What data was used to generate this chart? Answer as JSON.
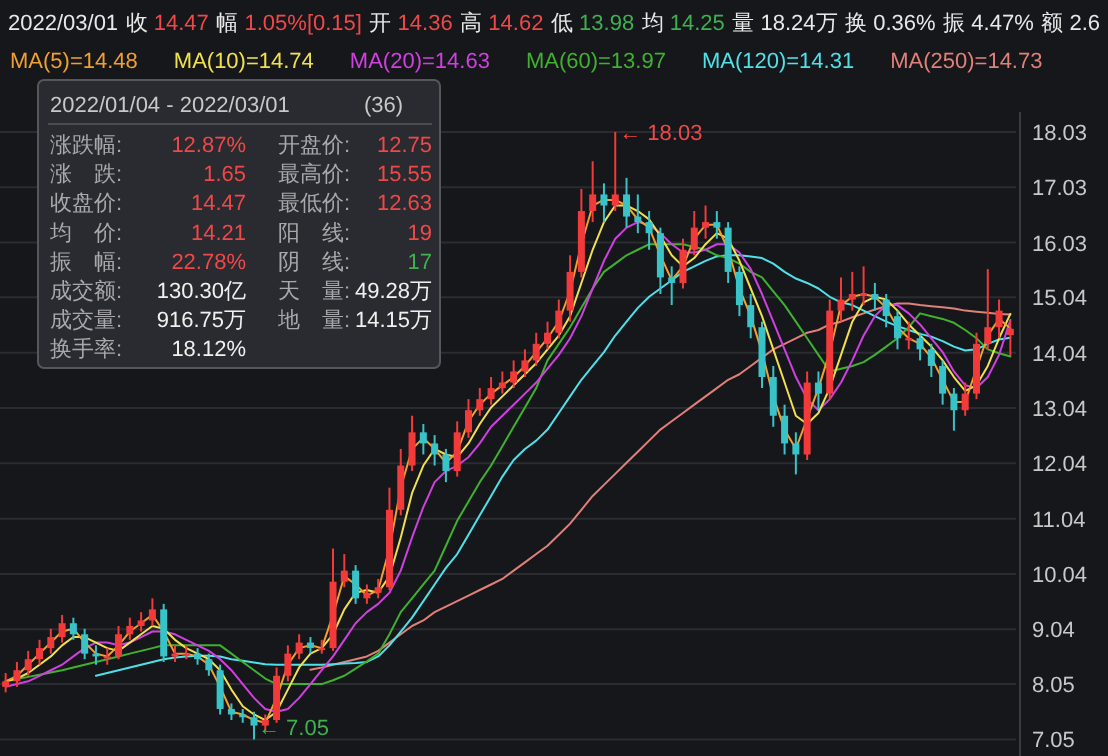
{
  "chart_data": {
    "type": "candlestick",
    "categories": [
      null,
      null,
      null,
      null,
      null,
      null,
      null,
      null,
      null,
      null,
      null,
      null,
      null,
      null,
      null,
      null,
      null,
      null,
      null,
      null,
      null,
      null,
      null,
      null,
      null,
      null,
      null,
      null,
      null,
      null,
      null,
      null,
      null,
      null,
      null,
      null,
      null,
      null,
      null,
      null,
      null,
      null,
      null,
      null,
      null,
      null,
      null,
      null,
      null,
      null,
      null,
      null,
      null,
      null,
      null,
      null,
      null,
      null,
      null,
      null,
      null,
      null,
      null,
      null,
      null,
      null,
      null,
      null,
      null,
      null,
      null,
      null,
      null,
      null,
      null,
      null,
      null,
      null,
      null,
      null,
      null,
      null,
      null,
      null,
      null,
      null,
      null,
      null,
      null,
      null
    ],
    "ohlc": [
      [
        8.0,
        8.25,
        7.9,
        8.1
      ],
      [
        8.1,
        8.45,
        8.0,
        8.3
      ],
      [
        8.3,
        8.65,
        8.2,
        8.5
      ],
      [
        8.5,
        8.85,
        8.4,
        8.7
      ],
      [
        8.7,
        9.05,
        8.6,
        8.9
      ],
      [
        8.9,
        9.3,
        8.8,
        9.15
      ],
      [
        9.15,
        9.25,
        8.85,
        8.95
      ],
      [
        8.95,
        9.05,
        8.5,
        8.6
      ],
      [
        8.6,
        8.75,
        8.4,
        8.55
      ],
      [
        8.55,
        8.7,
        8.4,
        8.55
      ],
      [
        8.55,
        9.1,
        8.5,
        8.95
      ],
      [
        8.95,
        9.25,
        8.85,
        9.1
      ],
      [
        9.1,
        9.35,
        9.0,
        9.2
      ],
      [
        9.2,
        9.6,
        9.1,
        9.4
      ],
      [
        9.4,
        9.5,
        8.45,
        8.55
      ],
      [
        8.55,
        8.75,
        8.45,
        8.6
      ],
      [
        8.6,
        8.75,
        8.5,
        8.6
      ],
      [
        8.6,
        8.7,
        8.4,
        8.5
      ],
      [
        8.5,
        8.6,
        8.2,
        8.3
      ],
      [
        8.3,
        8.4,
        7.5,
        7.6
      ],
      [
        7.6,
        7.7,
        7.4,
        7.5
      ],
      [
        7.5,
        7.6,
        7.35,
        7.45
      ],
      [
        7.45,
        7.55,
        7.05,
        7.3
      ],
      [
        7.3,
        7.5,
        7.2,
        7.4
      ],
      [
        7.4,
        8.35,
        7.35,
        8.2
      ],
      [
        8.2,
        8.75,
        8.1,
        8.6
      ],
      [
        8.6,
        8.95,
        8.5,
        8.8
      ],
      [
        8.8,
        8.9,
        8.6,
        8.7
      ],
      [
        8.7,
        8.85,
        8.6,
        8.7
      ],
      [
        8.7,
        10.5,
        8.65,
        9.9
      ],
      [
        9.9,
        10.4,
        9.8,
        10.1
      ],
      [
        10.1,
        10.2,
        9.5,
        9.6
      ],
      [
        9.6,
        9.85,
        9.5,
        9.7
      ],
      [
        9.7,
        9.95,
        9.6,
        9.8
      ],
      [
        9.8,
        11.6,
        9.75,
        11.2
      ],
      [
        11.2,
        12.3,
        11.1,
        12.0
      ],
      [
        12.0,
        12.9,
        11.9,
        12.6
      ],
      [
        12.6,
        12.75,
        12.2,
        12.4
      ],
      [
        12.4,
        12.55,
        12.0,
        12.2
      ],
      [
        12.2,
        12.3,
        11.7,
        11.9
      ],
      [
        11.9,
        12.8,
        11.8,
        12.6
      ],
      [
        12.6,
        13.2,
        12.5,
        13.0
      ],
      [
        13.0,
        13.4,
        12.9,
        13.2
      ],
      [
        13.2,
        13.6,
        13.1,
        13.4
      ],
      [
        13.4,
        13.7,
        13.3,
        13.5
      ],
      [
        13.5,
        13.9,
        13.4,
        13.7
      ],
      [
        13.7,
        14.1,
        13.6,
        13.9
      ],
      [
        13.9,
        14.4,
        13.8,
        14.2
      ],
      [
        14.2,
        14.6,
        14.1,
        14.4
      ],
      [
        14.4,
        15.0,
        14.3,
        14.8
      ],
      [
        14.8,
        15.8,
        14.6,
        15.5
      ],
      [
        15.5,
        17.0,
        15.4,
        16.6
      ],
      [
        16.6,
        17.5,
        16.4,
        16.9
      ],
      [
        16.9,
        17.1,
        16.4,
        16.7
      ],
      [
        16.7,
        18.03,
        16.6,
        16.9
      ],
      [
        16.9,
        17.2,
        16.3,
        16.5
      ],
      [
        16.5,
        16.9,
        16.2,
        16.4
      ],
      [
        16.4,
        16.6,
        15.9,
        16.2
      ],
      [
        16.2,
        16.3,
        15.1,
        15.4
      ],
      [
        15.4,
        15.6,
        14.9,
        15.3
      ],
      [
        15.3,
        16.1,
        15.2,
        15.9
      ],
      [
        15.9,
        16.6,
        15.8,
        16.3
      ],
      [
        16.3,
        16.7,
        16.1,
        16.4
      ],
      [
        16.4,
        16.6,
        16.1,
        16.3
      ],
      [
        16.3,
        16.4,
        15.3,
        15.5
      ],
      [
        15.5,
        15.6,
        14.7,
        14.9
      ],
      [
        14.9,
        15.1,
        14.3,
        14.5
      ],
      [
        14.5,
        14.6,
        13.4,
        13.6
      ],
      [
        13.6,
        13.8,
        12.7,
        12.9
      ],
      [
        12.9,
        13.1,
        12.2,
        12.4
      ],
      [
        12.4,
        12.6,
        11.84,
        12.2
      ],
      [
        12.2,
        13.7,
        12.1,
        13.5
      ],
      [
        13.5,
        13.7,
        13.0,
        13.3
      ],
      [
        13.3,
        15.0,
        13.2,
        14.8
      ],
      [
        14.8,
        15.4,
        14.6,
        15.0
      ],
      [
        15.0,
        15.5,
        14.8,
        15.1
      ],
      [
        15.1,
        15.6,
        14.9,
        15.1
      ],
      [
        15.1,
        15.3,
        14.8,
        15.0
      ],
      [
        15.0,
        15.1,
        14.5,
        14.7
      ],
      [
        14.7,
        14.8,
        14.1,
        14.3
      ],
      [
        14.3,
        14.6,
        14.1,
        14.3
      ],
      [
        14.3,
        14.4,
        13.9,
        14.1
      ],
      [
        14.1,
        14.2,
        13.6,
        13.8
      ],
      [
        13.8,
        13.9,
        13.1,
        13.3
      ],
      [
        13.3,
        13.4,
        12.63,
        13.0
      ],
      [
        13.0,
        13.5,
        12.9,
        13.3
      ],
      [
        13.3,
        14.4,
        13.2,
        14.2
      ],
      [
        14.2,
        15.55,
        14.1,
        14.5
      ],
      [
        14.5,
        15.0,
        14.3,
        14.8
      ],
      [
        14.36,
        14.62,
        13.98,
        14.47
      ]
    ],
    "colors": [
      "#f23a3a",
      "#f23a3a",
      "#f23a3a",
      "#f23a3a",
      "#f23a3a",
      "#f23a3a",
      "#38c3c8",
      "#38c3c8",
      "#38c3c8",
      "#f23a3a",
      "#f23a3a",
      "#f23a3a",
      "#f23a3a",
      "#f23a3a",
      "#38c3c8",
      "#f23a3a",
      "#f23a3a",
      "#38c3c8",
      "#38c3c8",
      "#38c3c8",
      "#38c3c8",
      "#38c3c8",
      "#38c3c8",
      "#f23a3a",
      "#f23a3a",
      "#f23a3a",
      "#f23a3a",
      "#38c3c8",
      "#f23a3a",
      "#f23a3a",
      "#f23a3a",
      "#38c3c8",
      "#f23a3a",
      "#f23a3a",
      "#f23a3a",
      "#f23a3a",
      "#f23a3a",
      "#38c3c8",
      "#38c3c8",
      "#38c3c8",
      "#f23a3a",
      "#f23a3a",
      "#f23a3a",
      "#f23a3a",
      "#f23a3a",
      "#f23a3a",
      "#f23a3a",
      "#f23a3a",
      "#f23a3a",
      "#f23a3a",
      "#f23a3a",
      "#f23a3a",
      "#f23a3a",
      "#38c3c8",
      "#f23a3a",
      "#38c3c8",
      "#38c3c8",
      "#38c3c8",
      "#38c3c8",
      "#38c3c8",
      "#f23a3a",
      "#f23a3a",
      "#f23a3a",
      "#38c3c8",
      "#38c3c8",
      "#38c3c8",
      "#38c3c8",
      "#38c3c8",
      "#38c3c8",
      "#38c3c8",
      "#38c3c8",
      "#f23a3a",
      "#38c3c8",
      "#f23a3a",
      "#f23a3a",
      "#f23a3a",
      "#f23a3a",
      "#38c3c8",
      "#38c3c8",
      "#38c3c8",
      "#f23a3a",
      "#38c3c8",
      "#38c3c8",
      "#38c3c8",
      "#38c3c8",
      "#f23a3a",
      "#f23a3a",
      "#f23a3a",
      "#f23a3a",
      "#f23a3a"
    ],
    "series": [
      {
        "type": "line",
        "name": "MA(5)=14.48",
        "color": "#f0a030",
        "values": [
          8.1,
          8.2,
          8.4,
          8.6,
          8.8,
          9.0,
          9.05,
          8.8,
          8.6,
          8.55,
          8.75,
          9.0,
          9.15,
          9.3,
          9.0,
          8.6,
          8.6,
          8.55,
          8.4,
          8.0,
          7.55,
          7.5,
          7.4,
          7.35,
          7.8,
          8.4,
          8.7,
          8.75,
          8.7,
          9.3,
          10.0,
          9.85,
          9.65,
          9.75,
          10.5,
          11.6,
          12.3,
          12.5,
          12.3,
          12.05,
          12.25,
          12.8,
          13.1,
          13.3,
          13.45,
          13.6,
          13.8,
          14.05,
          14.3,
          14.6,
          15.15,
          16.0,
          16.7,
          16.8,
          16.8,
          16.7,
          16.45,
          16.3,
          15.8,
          15.35,
          15.6,
          16.1,
          16.35,
          16.35,
          15.9,
          15.2,
          14.7,
          14.05,
          13.25,
          12.65,
          12.3,
          12.85,
          13.4,
          14.05,
          14.9,
          15.05,
          15.1,
          15.05,
          14.85,
          14.5,
          14.3,
          14.2,
          13.95,
          13.55,
          13.15,
          13.15,
          13.75,
          14.35,
          14.65,
          14.48
        ]
      },
      {
        "type": "line",
        "name": "MA(10)=14.74",
        "color": "#f0e050",
        "values": [
          8.1,
          8.15,
          8.25,
          8.4,
          8.55,
          8.75,
          8.9,
          8.9,
          8.8,
          8.7,
          8.65,
          8.8,
          8.95,
          9.1,
          9.05,
          8.85,
          8.7,
          8.6,
          8.5,
          8.3,
          7.95,
          7.65,
          7.5,
          7.4,
          7.55,
          7.95,
          8.35,
          8.6,
          8.7,
          8.95,
          9.4,
          9.7,
          9.75,
          9.7,
          10.0,
          10.7,
          11.5,
          12.0,
          12.3,
          12.2,
          12.15,
          12.4,
          12.75,
          13.05,
          13.25,
          13.45,
          13.65,
          13.85,
          14.1,
          14.35,
          14.7,
          15.3,
          15.9,
          16.4,
          16.7,
          16.7,
          16.6,
          16.45,
          16.15,
          15.8,
          15.6,
          15.75,
          16.0,
          16.2,
          16.1,
          15.7,
          15.2,
          14.7,
          14.1,
          13.5,
          12.9,
          12.75,
          12.95,
          13.4,
          14.0,
          14.6,
          14.95,
          15.05,
          15.0,
          14.8,
          14.55,
          14.35,
          14.15,
          13.9,
          13.6,
          13.35,
          13.45,
          13.8,
          14.3,
          14.74
        ]
      },
      {
        "type": "line",
        "name": "MA(20)=14.63",
        "color": "#d040e0",
        "values": [
          8.0,
          8.05,
          8.1,
          8.2,
          8.3,
          8.4,
          8.55,
          8.7,
          8.8,
          8.8,
          8.75,
          8.8,
          8.9,
          9.0,
          9.0,
          8.95,
          8.85,
          8.75,
          8.65,
          8.5,
          8.3,
          8.05,
          7.8,
          7.6,
          7.55,
          7.6,
          7.8,
          8.05,
          8.3,
          8.55,
          8.85,
          9.15,
          9.35,
          9.5,
          9.7,
          10.1,
          10.7,
          11.25,
          11.7,
          11.9,
          12.0,
          12.15,
          12.4,
          12.7,
          12.9,
          13.1,
          13.3,
          13.5,
          13.75,
          14.0,
          14.3,
          14.7,
          15.2,
          15.7,
          16.1,
          16.3,
          16.4,
          16.35,
          16.2,
          16.0,
          15.85,
          15.85,
          15.9,
          16.0,
          16.0,
          15.85,
          15.55,
          15.1,
          14.6,
          14.1,
          13.6,
          13.2,
          13.0,
          13.2,
          13.5,
          13.9,
          14.35,
          14.7,
          14.9,
          14.9,
          14.75,
          14.55,
          14.3,
          14.05,
          13.7,
          13.45,
          13.4,
          13.6,
          14.0,
          14.63
        ]
      },
      {
        "type": "line",
        "name": "MA(60)=13.97",
        "color": "#40b030",
        "values": [
          8.1,
          8.14,
          8.18,
          8.22,
          8.26,
          8.3,
          8.35,
          8.4,
          8.45,
          8.5,
          8.55,
          8.6,
          8.65,
          8.7,
          8.75,
          8.75,
          8.75,
          8.75,
          8.75,
          8.75,
          8.6,
          8.45,
          8.3,
          8.15,
          8.05,
          8.05,
          8.05,
          8.05,
          8.05,
          8.12,
          8.2,
          8.33,
          8.46,
          8.6,
          8.95,
          9.35,
          9.6,
          9.85,
          10.1,
          10.55,
          11.0,
          11.35,
          11.7,
          12.0,
          12.35,
          12.7,
          13.05,
          13.4,
          13.9,
          14.2,
          14.5,
          14.85,
          15.2,
          15.5,
          15.65,
          15.8,
          15.9,
          16.0,
          16.0,
          16.0,
          16.0,
          15.95,
          15.9,
          15.8,
          15.75,
          15.65,
          15.5,
          15.4,
          15.15,
          14.9,
          14.6,
          14.3,
          14.0,
          13.7,
          13.75,
          13.8,
          13.87,
          14.0,
          14.15,
          14.3,
          14.5,
          14.75,
          14.7,
          14.65,
          14.58,
          14.45,
          14.3,
          14.1,
          14.03,
          13.97
        ]
      },
      {
        "type": "line",
        "name": "MA(120)=14.31",
        "color": "#50e0e8",
        "values": [
          null,
          null,
          null,
          null,
          null,
          null,
          null,
          null,
          8.2,
          8.25,
          8.3,
          8.35,
          8.4,
          8.45,
          8.5,
          8.53,
          8.55,
          8.56,
          8.56,
          8.55,
          8.5,
          8.47,
          8.44,
          8.41,
          8.4,
          8.4,
          8.4,
          8.4,
          8.4,
          8.41,
          8.42,
          8.43,
          8.45,
          8.55,
          8.75,
          9.0,
          9.25,
          9.55,
          9.85,
          10.15,
          10.4,
          10.75,
          11.1,
          11.45,
          11.8,
          12.1,
          12.3,
          12.45,
          12.65,
          12.95,
          13.25,
          13.55,
          13.8,
          14.05,
          14.35,
          14.6,
          14.85,
          15.05,
          15.2,
          15.35,
          15.5,
          15.6,
          15.7,
          15.78,
          15.8,
          15.8,
          15.78,
          15.75,
          15.65,
          15.5,
          15.38,
          15.3,
          15.2,
          15.05,
          14.95,
          14.9,
          14.8,
          14.7,
          14.6,
          14.52,
          14.45,
          14.38,
          14.33,
          14.25,
          14.15,
          14.08,
          14.1,
          14.2,
          14.28,
          14.31
        ]
      },
      {
        "type": "line",
        "name": "MA(250)=14.73",
        "color": "#e08078",
        "values": [
          null,
          null,
          null,
          null,
          null,
          null,
          null,
          null,
          null,
          null,
          null,
          null,
          null,
          null,
          null,
          null,
          null,
          null,
          null,
          null,
          null,
          null,
          null,
          null,
          null,
          null,
          null,
          8.31,
          8.35,
          8.4,
          8.45,
          8.5,
          8.55,
          8.65,
          8.8,
          8.95,
          9.1,
          9.2,
          9.35,
          9.45,
          9.55,
          9.65,
          9.75,
          9.85,
          9.95,
          10.1,
          10.25,
          10.4,
          10.55,
          10.75,
          10.95,
          11.2,
          11.45,
          11.65,
          11.85,
          12.05,
          12.25,
          12.45,
          12.65,
          12.8,
          12.95,
          13.1,
          13.25,
          13.4,
          13.55,
          13.65,
          13.8,
          13.95,
          14.1,
          14.2,
          14.3,
          14.4,
          14.45,
          14.55,
          14.6,
          14.68,
          14.75,
          14.82,
          14.88,
          14.93,
          14.93,
          14.9,
          14.88,
          14.86,
          14.84,
          14.8,
          14.78,
          14.76,
          14.74,
          14.73
        ]
      }
    ],
    "ylim": [
      6.75,
      18.39
    ],
    "yticks": [
      7.05,
      8.05,
      9.04,
      10.04,
      11.04,
      12.04,
      13.04,
      14.04,
      15.04,
      16.03,
      17.03,
      18.03
    ],
    "grid": "y",
    "legend": "top left",
    "annotations": [
      "2022/03/01",
      "收 14.47",
      "幅 1.05%[0.15]",
      "开 14.36",
      "高 14.62",
      "低 13.98",
      "均 14.25",
      "量 18.24万",
      "换 0.36%",
      "振 4.47%",
      "额 2.6",
      "← 18.03",
      "← 7.05",
      "2022/01/04 - 2022/03/01",
      "(36)",
      "涨跌幅:",
      "12.87%",
      "开盘价:",
      "12.75",
      "涨　跌:",
      "1.65",
      "最高价:",
      "15.55",
      "收盘价:",
      "14.47",
      "最低价:",
      "12.63",
      "均　价:",
      "14.21",
      "阳　线:",
      "19",
      "振　幅:",
      "22.78%",
      "阴　线:",
      "17",
      "成交额:",
      "130.30亿",
      "天　量:",
      "49.28万",
      "成交量:",
      "916.75万",
      "地　量:",
      "14.15万",
      "换手率:",
      "18.12%"
    ]
  }
}
